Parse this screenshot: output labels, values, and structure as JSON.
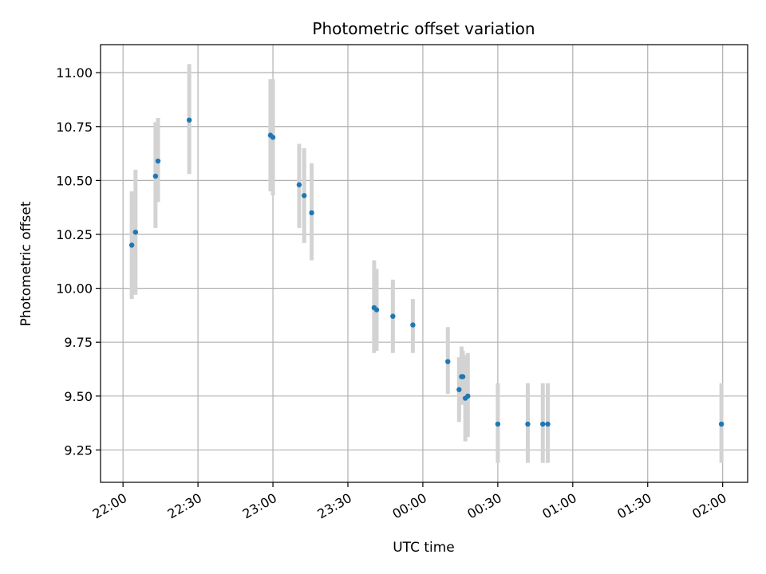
{
  "chart_data": {
    "type": "scatter",
    "title": "Photometric offset variation",
    "xlabel": "UTC time",
    "ylabel": "Photometric offset",
    "grid": true,
    "x_ticks": [
      "22:00",
      "22:30",
      "23:00",
      "23:30",
      "00:00",
      "00:30",
      "01:00",
      "01:30",
      "02:00"
    ],
    "x_tick_minutes": [
      0,
      30,
      60,
      90,
      120,
      150,
      180,
      210,
      240
    ],
    "xlim_minutes": [
      -9,
      250
    ],
    "y_ticks": [
      "9.25",
      "9.50",
      "9.75",
      "10.00",
      "10.25",
      "10.50",
      "10.75",
      "11.00"
    ],
    "ylim": [
      9.1,
      11.13
    ],
    "colors": {
      "points": "#1f77b4",
      "errorbars": "#d3d3d3",
      "grid": "#b0b0b0"
    },
    "points": [
      {
        "t": "22:03",
        "m": 3.5,
        "y": 10.2,
        "lo": 9.95,
        "hi": 10.45
      },
      {
        "t": "22:05",
        "m": 5.0,
        "y": 10.26,
        "lo": 9.97,
        "hi": 10.55
      },
      {
        "t": "22:13",
        "m": 13.0,
        "y": 10.52,
        "lo": 10.28,
        "hi": 10.77
      },
      {
        "t": "22:14",
        "m": 14.0,
        "y": 10.59,
        "lo": 10.4,
        "hi": 10.79
      },
      {
        "t": "22:27",
        "m": 26.5,
        "y": 10.78,
        "lo": 10.53,
        "hi": 11.04
      },
      {
        "t": "22:59",
        "m": 59.0,
        "y": 10.71,
        "lo": 10.45,
        "hi": 10.97
      },
      {
        "t": "23:00",
        "m": 60.0,
        "y": 10.7,
        "lo": 10.43,
        "hi": 10.97
      },
      {
        "t": "23:10",
        "m": 70.5,
        "y": 10.48,
        "lo": 10.28,
        "hi": 10.67
      },
      {
        "t": "23:12",
        "m": 72.5,
        "y": 10.43,
        "lo": 10.21,
        "hi": 10.65
      },
      {
        "t": "23:15",
        "m": 75.5,
        "y": 10.35,
        "lo": 10.13,
        "hi": 10.58
      },
      {
        "t": "23:40",
        "m": 100.5,
        "y": 9.91,
        "lo": 9.7,
        "hi": 10.13
      },
      {
        "t": "23:41",
        "m": 101.5,
        "y": 9.9,
        "lo": 9.71,
        "hi": 10.09
      },
      {
        "t": "23:48",
        "m": 108.0,
        "y": 9.87,
        "lo": 9.7,
        "hi": 10.04
      },
      {
        "t": "23:56",
        "m": 116.0,
        "y": 9.83,
        "lo": 9.7,
        "hi": 9.95
      },
      {
        "t": "00:10",
        "m": 130.0,
        "y": 9.66,
        "lo": 9.51,
        "hi": 9.82
      },
      {
        "t": "00:14",
        "m": 134.5,
        "y": 9.53,
        "lo": 9.38,
        "hi": 9.68
      },
      {
        "t": "00:15",
        "m": 135.5,
        "y": 9.59,
        "lo": 9.46,
        "hi": 9.73
      },
      {
        "t": "00:16",
        "m": 136.0,
        "y": 9.59,
        "lo": 9.46,
        "hi": 9.71
      },
      {
        "t": "00:17",
        "m": 137.0,
        "y": 9.49,
        "lo": 9.29,
        "hi": 9.69
      },
      {
        "t": "00:18",
        "m": 138.0,
        "y": 9.5,
        "lo": 9.31,
        "hi": 9.7
      },
      {
        "t": "00:30",
        "m": 150.0,
        "y": 9.37,
        "lo": 9.19,
        "hi": 9.56
      },
      {
        "t": "00:42",
        "m": 162.0,
        "y": 9.37,
        "lo": 9.19,
        "hi": 9.56
      },
      {
        "t": "00:48",
        "m": 168.0,
        "y": 9.37,
        "lo": 9.19,
        "hi": 9.56
      },
      {
        "t": "00:50",
        "m": 170.0,
        "y": 9.37,
        "lo": 9.19,
        "hi": 9.56
      },
      {
        "t": "01:59",
        "m": 239.5,
        "y": 9.37,
        "lo": 9.19,
        "hi": 9.56
      }
    ]
  }
}
